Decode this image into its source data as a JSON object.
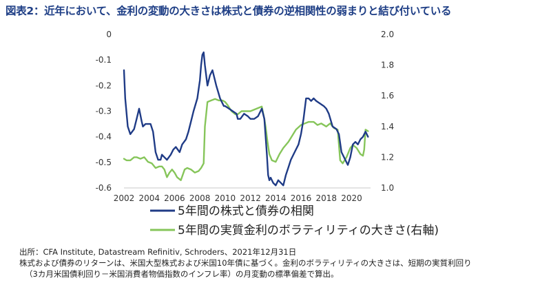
{
  "title": "図表2：近年において、金利の変動の大きさは株式と債券の逆相関性の弱まりと結び付いている",
  "notes": {
    "source": "出所：CFA Institute, Datastream Refinitiv, Schroders、2021年12月31日",
    "line2": "株式および債券のリターンは、米国大型株式および米国10年債に基づく。金利のボラティリティの大きさは、短期の実質利回り",
    "line3": "（3カ月米国債利回り－米国消費者物価指数のインフレ率）の月変動の標準偏差で算出。"
  },
  "colors": {
    "correlation": "#1f3b86",
    "volatility": "#86c55a"
  },
  "chart_data": {
    "type": "line",
    "xlim": [
      2002,
      2021.5
    ],
    "ylim_left": [
      -0.6,
      0
    ],
    "ylim_right": [
      1.0,
      2.0
    ],
    "x_ticks": [
      "2002",
      "2004",
      "2006",
      "2008",
      "2010",
      "2012",
      "2014",
      "2016",
      "2018",
      "2020"
    ],
    "y_left_ticks": [
      "0",
      "-0.1",
      "-0.2",
      "-0.3",
      "-0.4",
      "-0.5",
      "-0.6"
    ],
    "y_right_ticks": [
      "2.0",
      "1.8",
      "1.6",
      "1.4",
      "1.2",
      "1.0"
    ],
    "series": [
      {
        "name": "5年間の株式と債券の相関",
        "axis": "left",
        "x": [
          2002.0,
          2002.1,
          2002.3,
          2002.5,
          2002.8,
          2003.0,
          2003.2,
          2003.4,
          2003.5,
          2003.7,
          2003.9,
          2004.1,
          2004.3,
          2004.5,
          2004.7,
          2004.9,
          2005.0,
          2005.2,
          2005.4,
          2005.7,
          2005.9,
          2006.1,
          2006.4,
          2006.6,
          2006.9,
          2007.1,
          2007.3,
          2007.5,
          2007.8,
          2008.0,
          2008.1,
          2008.2,
          2008.3,
          2008.4,
          2008.6,
          2008.8,
          2009.0,
          2009.3,
          2009.6,
          2009.9,
          2010.0,
          2010.3,
          2010.6,
          2010.9,
          2011.0,
          2011.2,
          2011.5,
          2011.8,
          2012.0,
          2012.3,
          2012.6,
          2012.9,
          2013.1,
          2013.3,
          2013.4,
          2013.5,
          2013.6,
          2013.8,
          2014.0,
          2014.2,
          2014.4,
          2014.6,
          2014.8,
          2015.0,
          2015.2,
          2015.5,
          2015.8,
          2016.0,
          2016.2,
          2016.4,
          2016.6,
          2016.8,
          2017.0,
          2017.2,
          2017.5,
          2017.8,
          2018.0,
          2018.2,
          2018.5,
          2018.8,
          2019.0,
          2019.2,
          2019.5,
          2019.7,
          2019.9,
          2020.1,
          2020.3,
          2020.5,
          2020.7,
          2020.9,
          2021.1,
          2021.2,
          2021.3
        ],
        "values": [
          -0.14,
          -0.25,
          -0.36,
          -0.39,
          -0.37,
          -0.33,
          -0.29,
          -0.34,
          -0.36,
          -0.35,
          -0.35,
          -0.35,
          -0.38,
          -0.46,
          -0.49,
          -0.49,
          -0.47,
          -0.48,
          -0.49,
          -0.47,
          -0.45,
          -0.44,
          -0.46,
          -0.43,
          -0.41,
          -0.38,
          -0.34,
          -0.3,
          -0.25,
          -0.18,
          -0.12,
          -0.08,
          -0.07,
          -0.12,
          -0.2,
          -0.16,
          -0.14,
          -0.2,
          -0.25,
          -0.28,
          -0.28,
          -0.29,
          -0.3,
          -0.31,
          -0.33,
          -0.33,
          -0.31,
          -0.32,
          -0.33,
          -0.33,
          -0.32,
          -0.29,
          -0.33,
          -0.47,
          -0.55,
          -0.57,
          -0.56,
          -0.58,
          -0.59,
          -0.57,
          -0.58,
          -0.59,
          -0.55,
          -0.52,
          -0.49,
          -0.46,
          -0.43,
          -0.39,
          -0.33,
          -0.25,
          -0.25,
          -0.26,
          -0.25,
          -0.26,
          -0.27,
          -0.28,
          -0.29,
          -0.31,
          -0.36,
          -0.37,
          -0.39,
          -0.46,
          -0.49,
          -0.51,
          -0.48,
          -0.43,
          -0.42,
          -0.43,
          -0.41,
          -0.4,
          -0.38,
          -0.39,
          -0.4
        ]
      },
      {
        "name": "5年間の実質金利のボラティリティの大きさ(右軸)",
        "axis": "right",
        "x": [
          2002.0,
          2002.2,
          2002.5,
          2002.8,
          2003.0,
          2003.3,
          2003.6,
          2003.9,
          2004.2,
          2004.5,
          2004.8,
          2005.0,
          2005.2,
          2005.4,
          2005.6,
          2005.8,
          2006.0,
          2006.2,
          2006.5,
          2006.8,
          2007.0,
          2007.3,
          2007.6,
          2007.9,
          2008.1,
          2008.3,
          2008.4,
          2008.6,
          2008.9,
          2009.2,
          2009.5,
          2009.8,
          2010.0,
          2010.2,
          2010.5,
          2010.8,
          2011.0,
          2011.3,
          2011.6,
          2012.0,
          2012.3,
          2012.6,
          2012.9,
          2013.1,
          2013.2,
          2013.35,
          2013.5,
          2013.7,
          2014.0,
          2014.3,
          2014.6,
          2015.0,
          2015.3,
          2015.6,
          2016.0,
          2016.3,
          2016.6,
          2017.0,
          2017.3,
          2017.6,
          2018.0,
          2018.3,
          2018.6,
          2018.9,
          2019.1,
          2019.3,
          2019.6,
          2019.9,
          2020.1,
          2020.4,
          2020.7,
          2020.9,
          2021.0,
          2021.1,
          2021.3
        ],
        "values": [
          1.19,
          1.18,
          1.18,
          1.2,
          1.2,
          1.19,
          1.2,
          1.17,
          1.16,
          1.13,
          1.14,
          1.14,
          1.12,
          1.07,
          1.1,
          1.12,
          1.1,
          1.07,
          1.05,
          1.12,
          1.13,
          1.12,
          1.1,
          1.11,
          1.13,
          1.16,
          1.4,
          1.56,
          1.57,
          1.58,
          1.57,
          1.57,
          1.56,
          1.54,
          1.5,
          1.48,
          1.48,
          1.5,
          1.5,
          1.5,
          1.51,
          1.52,
          1.53,
          1.45,
          1.4,
          1.3,
          1.22,
          1.18,
          1.17,
          1.22,
          1.26,
          1.3,
          1.34,
          1.38,
          1.41,
          1.42,
          1.43,
          1.43,
          1.41,
          1.42,
          1.4,
          1.42,
          1.39,
          1.38,
          1.18,
          1.16,
          1.2,
          1.26,
          1.28,
          1.26,
          1.22,
          1.21,
          1.25,
          1.38,
          1.37
        ]
      }
    ]
  }
}
